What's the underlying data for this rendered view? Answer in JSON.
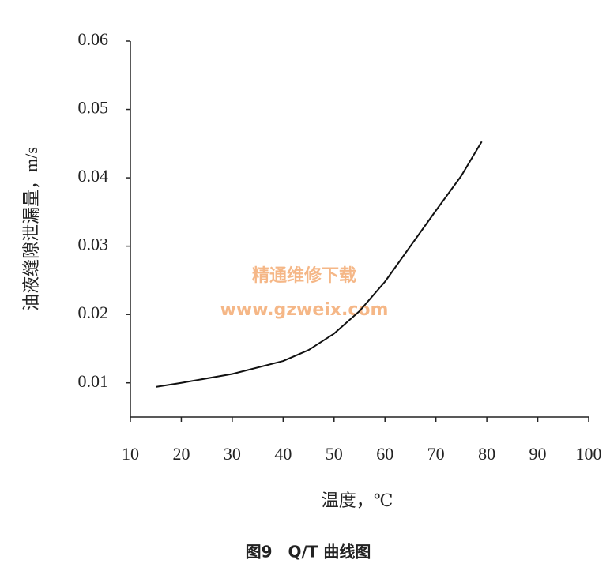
{
  "chart_data": {
    "type": "line",
    "x": [
      15,
      20,
      30,
      40,
      45,
      50,
      55,
      60,
      65,
      70,
      75,
      79
    ],
    "values": [
      0.0094,
      0.01,
      0.0113,
      0.0132,
      0.0148,
      0.0172,
      0.0205,
      0.0248,
      0.03,
      0.0352,
      0.0403,
      0.0453
    ],
    "color": "#111111",
    "xlim": [
      10,
      100
    ],
    "xticks": [
      10,
      20,
      30,
      40,
      50,
      60,
      70,
      80,
      90,
      100
    ],
    "ylim": [
      0.005,
      0.06
    ],
    "yticks": [
      0.01,
      0.02,
      0.03,
      0.04,
      0.05,
      0.06
    ],
    "x_label": "温度，℃",
    "y_label": "油液缝隙泄漏量，m/s",
    "caption": "图9　Q/T 曲线图",
    "grid": false
  },
  "watermark": {
    "text": "精通维修下载",
    "url": "www.gzweix.com"
  }
}
